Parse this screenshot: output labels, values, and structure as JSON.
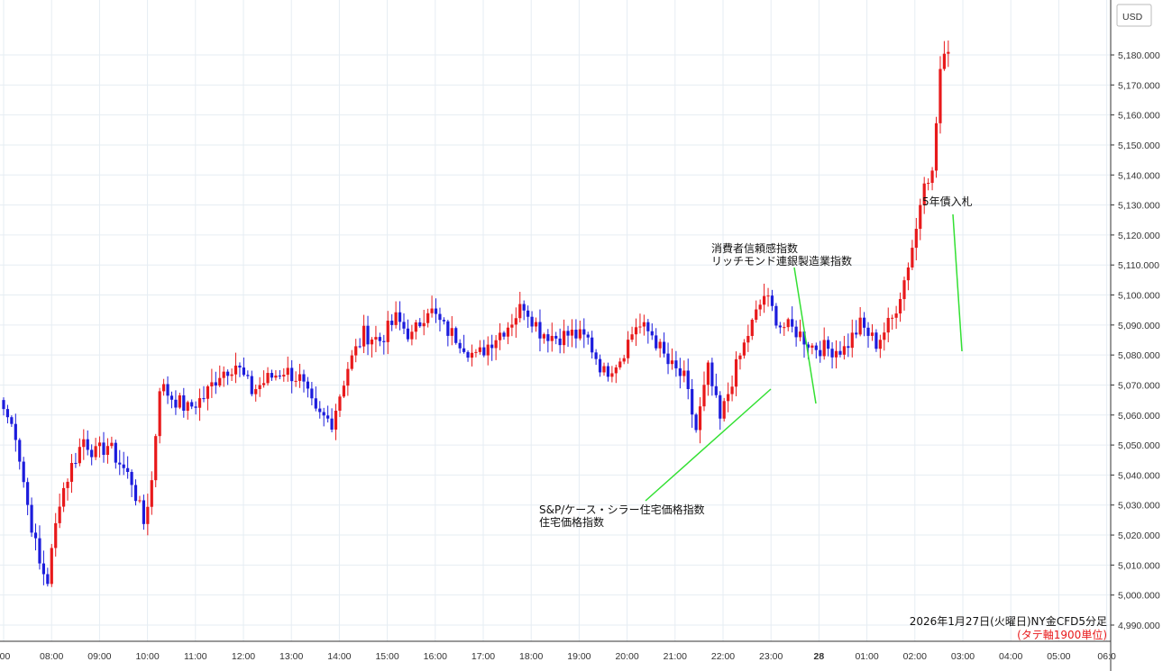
{
  "chart_data": {
    "type": "candlestick",
    "currency": "USD",
    "caption": "2026年1月27日(火曜日)NY金CFD5分足",
    "caption_note": "(タテ軸1900単位)",
    "ylim": [
      4985,
      5192
    ],
    "y_ticks": [
      4990,
      5000,
      5010,
      5020,
      5030,
      5040,
      5050,
      5060,
      5070,
      5080,
      5090,
      5100,
      5110,
      5120,
      5130,
      5140,
      5150,
      5160,
      5170,
      5180
    ],
    "y_tick_labels": [
      "4,990.000",
      "5,000.000",
      "5,010.000",
      "5,020.000",
      "5,030.000",
      "5,040.000",
      "5,050.000",
      "5,060.000",
      "5,070.000",
      "5,080.000",
      "5,090.000",
      "5,100.000",
      "5,110.000",
      "5,120.000",
      "5,130.000",
      "5,140.000",
      "5,150.000",
      "5,160.000",
      "5,170.000",
      "5,180.000"
    ],
    "x_labels": [
      ":00",
      "08:00",
      "09:00",
      "10:00",
      "11:00",
      "12:00",
      "13:00",
      "14:00",
      "15:00",
      "16:00",
      "17:00",
      "18:00",
      "19:00",
      "20:00",
      "21:00",
      "22:00",
      "23:00",
      "28",
      "01:00",
      "02:00",
      "03:00",
      "04:00",
      "05:00",
      "06:0"
    ],
    "anchors": [
      [
        0,
        5062
      ],
      [
        3,
        5054
      ],
      [
        6,
        5030
      ],
      [
        9,
        5010
      ],
      [
        11,
        5005
      ],
      [
        14,
        5032
      ],
      [
        17,
        5043
      ],
      [
        20,
        5052
      ],
      [
        23,
        5047
      ],
      [
        26,
        5050
      ],
      [
        29,
        5044
      ],
      [
        32,
        5038
      ],
      [
        35,
        5024
      ],
      [
        37,
        5038
      ],
      [
        39,
        5070
      ],
      [
        42,
        5066
      ],
      [
        46,
        5062
      ],
      [
        50,
        5066
      ],
      [
        54,
        5074
      ],
      [
        58,
        5077
      ],
      [
        62,
        5068
      ],
      [
        66,
        5072
      ],
      [
        70,
        5075
      ],
      [
        74,
        5072
      ],
      [
        78,
        5060
      ],
      [
        82,
        5058
      ],
      [
        86,
        5076
      ],
      [
        90,
        5087
      ],
      [
        94,
        5085
      ],
      [
        98,
        5092
      ],
      [
        102,
        5086
      ],
      [
        106,
        5096
      ],
      [
        110,
        5089
      ],
      [
        114,
        5085
      ],
      [
        118,
        5079
      ],
      [
        122,
        5085
      ],
      [
        126,
        5090
      ],
      [
        130,
        5097
      ],
      [
        134,
        5088
      ],
      [
        138,
        5086
      ],
      [
        142,
        5087
      ],
      [
        146,
        5085
      ],
      [
        150,
        5074
      ],
      [
        154,
        5079
      ],
      [
        158,
        5090
      ],
      [
        162,
        5087
      ],
      [
        166,
        5077
      ],
      [
        170,
        5072
      ],
      [
        173,
        5055
      ],
      [
        176,
        5075
      ],
      [
        179,
        5058
      ],
      [
        182,
        5072
      ],
      [
        186,
        5087
      ],
      [
        190,
        5100
      ],
      [
        194,
        5090
      ],
      [
        198,
        5088
      ],
      [
        202,
        5083
      ],
      [
        206,
        5082
      ],
      [
        210,
        5082
      ],
      [
        214,
        5090
      ],
      [
        218,
        5084
      ],
      [
        222,
        5092
      ],
      [
        225,
        5105
      ],
      [
        228,
        5122
      ],
      [
        230,
        5140
      ],
      [
        232,
        5140
      ],
      [
        234,
        5175
      ],
      [
        236,
        5181
      ]
    ],
    "annotations": [
      {
        "lines": [
          "S&P/ケース・シラー住宅価格指数",
          "住宅価格指数"
        ]
      },
      {
        "lines": [
          "消費者信頼感指数",
          "リッチモンド連銀製造業指数"
        ]
      },
      {
        "lines": [
          "5年債入札"
        ]
      }
    ],
    "colors": {
      "up": "#e8191b",
      "down": "#1c1cdc",
      "grid": "#e6edf3",
      "annotation_line": "#33e033"
    },
    "grid": true
  }
}
